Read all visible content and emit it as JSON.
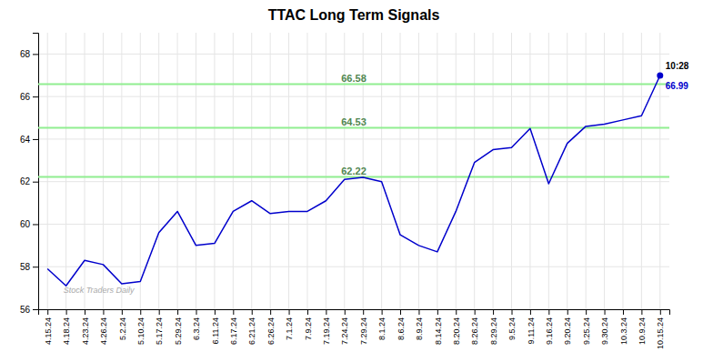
{
  "chart_data": {
    "type": "line",
    "title": "TTAC Long Term Signals",
    "categories": [
      "4.15.24",
      "4.18.24",
      "4.23.24",
      "4.26.24",
      "5.2.24",
      "5.10.24",
      "5.17.24",
      "5.29.24",
      "6.3.24",
      "6.11.24",
      "6.17.24",
      "6.21.24",
      "6.26.24",
      "7.1.24",
      "7.9.24",
      "7.19.24",
      "7.24.24",
      "7.29.24",
      "8.1.24",
      "8.6.24",
      "8.9.24",
      "8.14.24",
      "8.20.24",
      "8.26.24",
      "8.29.24",
      "9.5.24",
      "9.11.24",
      "9.16.24",
      "9.20.24",
      "9.25.24",
      "9.30.24",
      "10.3.24",
      "10.9.24",
      "10.15.24"
    ],
    "values": [
      57.9,
      57.1,
      58.3,
      58.1,
      57.2,
      57.3,
      59.6,
      60.6,
      59.0,
      59.1,
      60.6,
      61.1,
      60.5,
      60.6,
      60.6,
      61.1,
      62.1,
      62.2,
      62.0,
      59.5,
      59.0,
      58.7,
      60.6,
      62.9,
      63.5,
      63.6,
      64.5,
      61.9,
      63.8,
      64.6,
      64.7,
      64.9,
      65.1,
      66.99
    ],
    "color": "#0000cc",
    "ylim": [
      56,
      69
    ],
    "yticks": [
      56,
      58,
      60,
      62,
      64,
      66,
      68
    ],
    "grid": true,
    "reference_lines": [
      {
        "value": 62.22,
        "label": "62.22",
        "color": "#90ee90"
      },
      {
        "value": 64.53,
        "label": "64.53",
        "color": "#90ee90"
      },
      {
        "value": 66.58,
        "label": "66.58",
        "color": "#90ee90"
      }
    ],
    "watermark": "Stock Traders Daily",
    "last_point_labels": [
      "10:28",
      "66.99"
    ]
  }
}
